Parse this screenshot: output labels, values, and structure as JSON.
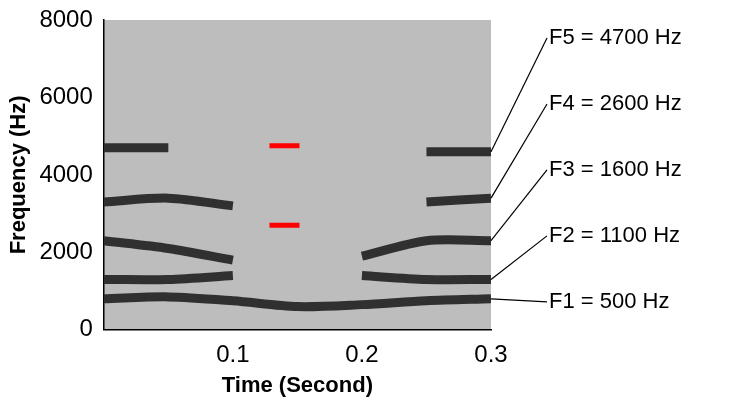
{
  "chart_data": {
    "type": "line",
    "x_label": "Time (Second)",
    "y_label": "Frequency (Hz)",
    "xlim": [
      0,
      0.3
    ],
    "xticks": [
      0.1,
      0.2,
      0.3
    ],
    "ylim": [
      0,
      8000
    ],
    "yticks": [
      0,
      2000,
      4000,
      6000,
      8000
    ],
    "grid": false,
    "x": [
      0,
      0.05,
      0.1,
      0.15,
      0.2,
      0.25,
      0.3
    ],
    "series": [
      {
        "color": "#303030",
        "values": [
          800,
          850,
          750,
          600,
          650,
          750,
          800
        ]
      },
      {
        "color": "#303030",
        "values": [
          1300,
          1300,
          1400,
          null,
          1400,
          1300,
          1300
        ]
      },
      {
        "color": "#303030",
        "values": [
          2300,
          2100,
          1800,
          null,
          1900,
          2300,
          2300
        ]
      },
      {
        "color": "#303030",
        "values": [
          3300,
          3400,
          3200,
          null,
          null,
          3300,
          3400
        ]
      },
      {
        "color": "#303030",
        "values": [
          4700,
          4700,
          null,
          null,
          null,
          4600,
          4600
        ]
      },
      {
        "type": "scatter",
        "color": "#ff0000",
        "marker": "line",
        "x": [
          0.14,
          0.14
        ],
        "values": [
          4750,
          2700
        ]
      }
    ],
    "annotations": [
      {
        "text": "F5 = 4700 Hz",
        "x": 0.3,
        "y": 4600
      },
      {
        "text": "F4 = 2600 Hz",
        "x": 0.3,
        "y": 3400
      },
      {
        "text": "F3 = 1600 Hz",
        "x": 0.3,
        "y": 2300
      },
      {
        "text": "F2 = 1100 Hz",
        "x": 0.3,
        "y": 1300
      },
      {
        "text": "F1 = 500 Hz",
        "x": 0.3,
        "y": 800
      }
    ]
  }
}
